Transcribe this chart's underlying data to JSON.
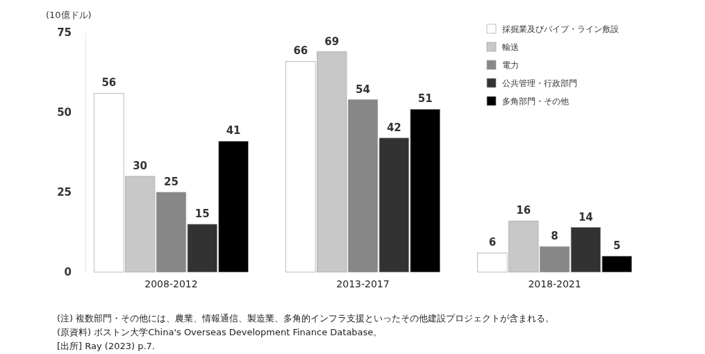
{
  "chart_data": {
    "type": "bar",
    "ylabel": "(10億ドル)",
    "categories": [
      "2008-2012",
      "2013-2017",
      "2018-2021"
    ],
    "series": [
      {
        "name": "採掘業及びパイプ・ライン敷設",
        "color": "#ffffff",
        "values": [
          56,
          66,
          6
        ]
      },
      {
        "name": "輸送",
        "color": "#c8c8c8",
        "values": [
          30,
          69,
          16
        ]
      },
      {
        "name": "電力",
        "color": "#878787",
        "values": [
          25,
          54,
          8
        ]
      },
      {
        "name": "公共管理・行政部門",
        "color": "#323232",
        "values": [
          15,
          42,
          14
        ]
      },
      {
        "name": "多角部門・その他",
        "color": "#000000",
        "values": [
          41,
          51,
          5
        ]
      }
    ],
    "ylim": [
      0,
      75
    ],
    "yticks": [
      0,
      25,
      50,
      75
    ],
    "grid": false,
    "legend": "top right",
    "data_labels": true,
    "annotations": [
      "(注) 複数部門・その他には、農業、情報通信、製造業、多角的インフラ支援といったその他建設プロジェクトが含まれる。",
      "(原資料) ボストン大学China's Overseas Development Finance Database。",
      "[出所] Ray (2023) p.7."
    ]
  }
}
